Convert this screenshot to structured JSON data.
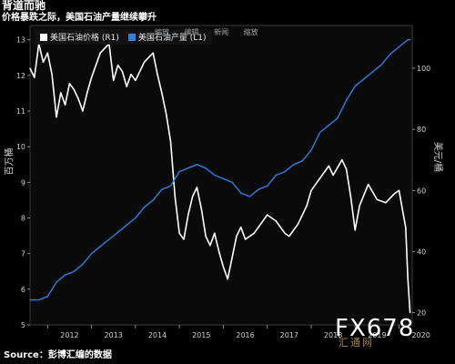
{
  "title": "背道而驰",
  "subtitle": "价格暴跌之际，美国石油产量继续攀升",
  "source": "Source：彭博汇编的数据",
  "watermark": "FX678",
  "watermark_sub": "汇通网",
  "toolbar": [
    "缩放",
    "编辑",
    "新闻",
    "缩放"
  ],
  "chart_data": {
    "type": "line",
    "xlabel": "",
    "ylabel_left": "百万桶",
    "ylabel_right": "美元/桶",
    "x_ticks": [
      "2012",
      "2013",
      "2014",
      "2015",
      "2016",
      "2017",
      "2018",
      "2019",
      "2020"
    ],
    "y_left_ticks": [
      5,
      6,
      7,
      8,
      9,
      10,
      11,
      12,
      13
    ],
    "y_left_range": [
      5,
      13.4
    ],
    "y_right_ticks": [
      20,
      40,
      60,
      80,
      100
    ],
    "y_right_range": [
      16,
      114
    ],
    "grid": false,
    "legend_position": "top-left",
    "series": [
      {
        "name": "美国石油价格 (R1)",
        "axis": "right",
        "color": "#ffffff",
        "x": [
          2011.6,
          2011.7,
          2011.8,
          2011.9,
          2012.0,
          2012.1,
          2012.2,
          2012.3,
          2012.4,
          2012.5,
          2012.6,
          2012.7,
          2012.8,
          2012.9,
          2013.0,
          2013.2,
          2013.4,
          2013.5,
          2013.6,
          2013.7,
          2013.8,
          2013.9,
          2014.0,
          2014.2,
          2014.4,
          2014.5,
          2014.6,
          2014.7,
          2014.8,
          2014.9,
          2015.0,
          2015.1,
          2015.2,
          2015.3,
          2015.4,
          2015.5,
          2015.6,
          2015.7,
          2015.8,
          2015.9,
          2016.0,
          2016.1,
          2016.2,
          2016.3,
          2016.4,
          2016.5,
          2016.7,
          2016.9,
          2017.0,
          2017.2,
          2017.4,
          2017.5,
          2017.7,
          2017.9,
          2018.0,
          2018.2,
          2018.4,
          2018.5,
          2018.7,
          2018.8,
          2018.9,
          2019.0,
          2019.1,
          2019.3,
          2019.5,
          2019.7,
          2019.9,
          2020.0,
          2020.1,
          2020.15,
          2020.2,
          2020.25
        ],
        "values": [
          100,
          97,
          108,
          102,
          105,
          98,
          84,
          92,
          88,
          95,
          93,
          90,
          86,
          92,
          97,
          105,
          108,
          96,
          101,
          99,
          94,
          98,
          96,
          102,
          105,
          98,
          92,
          85,
          76,
          58,
          46,
          44,
          52,
          58,
          61,
          54,
          45,
          42,
          46,
          40,
          35,
          31,
          38,
          45,
          48,
          44,
          46,
          50,
          52,
          50,
          46,
          45,
          49,
          55,
          60,
          64,
          68,
          65,
          70,
          67,
          58,
          47,
          55,
          62,
          57,
          56,
          59,
          60,
          52,
          48,
          31,
          20
        ]
      },
      {
        "name": "美国石油产量 (L1)",
        "axis": "left",
        "color": "#2e7fe0",
        "x": [
          2011.6,
          2011.8,
          2012.0,
          2012.2,
          2012.4,
          2012.6,
          2012.8,
          2013.0,
          2013.2,
          2013.4,
          2013.6,
          2013.8,
          2014.0,
          2014.2,
          2014.4,
          2014.6,
          2014.8,
          2015.0,
          2015.2,
          2015.4,
          2015.6,
          2015.8,
          2016.0,
          2016.2,
          2016.4,
          2016.6,
          2016.8,
          2017.0,
          2017.2,
          2017.4,
          2017.6,
          2017.8,
          2018.0,
          2018.2,
          2018.4,
          2018.6,
          2018.8,
          2019.0,
          2019.2,
          2019.4,
          2019.6,
          2019.8,
          2020.0,
          2020.2,
          2020.25
        ],
        "values": [
          5.7,
          5.7,
          5.8,
          6.2,
          6.4,
          6.5,
          6.7,
          7.0,
          7.2,
          7.4,
          7.6,
          7.8,
          8.0,
          8.3,
          8.5,
          8.8,
          8.9,
          9.3,
          9.4,
          9.5,
          9.4,
          9.2,
          9.1,
          9.0,
          8.7,
          8.6,
          8.8,
          8.9,
          9.2,
          9.3,
          9.5,
          9.6,
          9.9,
          10.4,
          10.6,
          10.8,
          11.3,
          11.7,
          11.9,
          12.1,
          12.3,
          12.6,
          12.8,
          13.0,
          13.0
        ]
      }
    ]
  }
}
